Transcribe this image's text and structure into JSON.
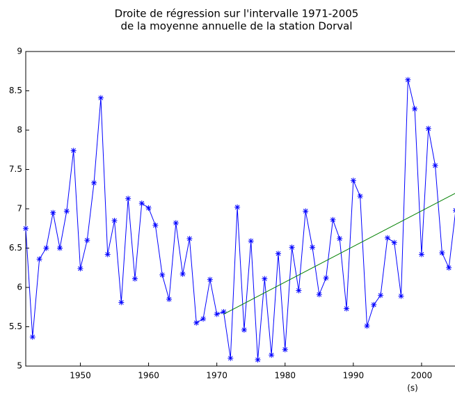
{
  "chart_data": {
    "type": "line",
    "title": [
      "Droite de régression sur l'intervalle 1971-2005",
      "de la moyenne annuelle de la station Dorval"
    ],
    "x_label": "(s)",
    "xlim": [
      1942,
      2005
    ],
    "xticks": [
      1950,
      1960,
      1970,
      1980,
      1990,
      2000
    ],
    "ylim": [
      5,
      9
    ],
    "yticks": [
      5,
      5.5,
      6,
      6.5,
      7,
      7.5,
      8,
      8.5,
      9
    ],
    "grid": false,
    "series": [
      {
        "color": "#0000ff",
        "marker": "*",
        "x": [
          1942,
          1943,
          1944,
          1945,
          1946,
          1947,
          1948,
          1949,
          1950,
          1951,
          1952,
          1953,
          1954,
          1955,
          1956,
          1957,
          1958,
          1959,
          1960,
          1961,
          1962,
          1963,
          1964,
          1965,
          1966,
          1967,
          1968,
          1969,
          1970,
          1971,
          1972,
          1973,
          1974,
          1975,
          1976,
          1977,
          1978,
          1979,
          1980,
          1981,
          1982,
          1983,
          1984,
          1985,
          1986,
          1987,
          1988,
          1989,
          1990,
          1991,
          1992,
          1993,
          1994,
          1995,
          1996,
          1997,
          1998,
          1999,
          2000,
          2001,
          2002,
          2003,
          2004,
          2005
        ],
        "values": [
          6.75,
          5.37,
          6.36,
          6.5,
          6.95,
          6.5,
          6.97,
          7.74,
          6.24,
          6.6,
          7.33,
          8.41,
          6.42,
          6.85,
          5.81,
          7.13,
          6.11,
          7.07,
          7.01,
          6.79,
          6.16,
          5.85,
          6.82,
          6.17,
          6.62,
          5.55,
          5.6,
          6.1,
          5.66,
          5.69,
          5.1,
          7.02,
          5.46,
          6.59,
          5.08,
          6.11,
          5.14,
          6.43,
          5.21,
          6.51,
          5.96,
          6.97,
          6.51,
          5.91,
          6.12,
          6.86,
          6.62,
          5.73,
          7.36,
          7.16,
          5.51,
          5.78,
          5.9,
          6.63,
          6.57,
          5.89,
          8.64,
          8.27,
          6.42,
          8.02,
          7.55,
          6.44,
          6.25,
          6.98
        ]
      },
      {
        "color": "#008000",
        "x": [
          1971,
          2005
        ],
        "values": [
          5.66,
          7.2
        ]
      }
    ]
  }
}
